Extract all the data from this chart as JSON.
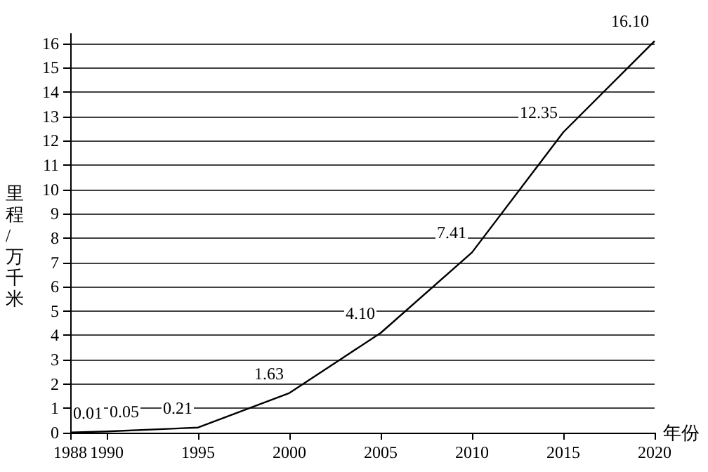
{
  "chart_data": {
    "type": "line",
    "xlabel": "年份",
    "ylabel": "里程/万千米",
    "x": [
      1988,
      1990,
      1995,
      2000,
      2005,
      2010,
      2015,
      2020
    ],
    "series": [
      {
        "color": "#000000",
        "values": [
          0.01,
          0.05,
          0.21,
          1.63,
          4.1,
          7.41,
          12.35,
          16.1
        ]
      }
    ],
    "value_labels": [
      "0.01",
      "0.05",
      "0.21",
      "1.63",
      "4.10",
      "7.41",
      "12.35",
      "16.10"
    ],
    "xlim": [
      1988,
      2020
    ],
    "xticks": [
      1988,
      1990,
      1995,
      2000,
      2005,
      2010,
      2015,
      2020
    ],
    "ylim": [
      0,
      16.4
    ],
    "yticks": [
      0,
      1,
      2,
      3,
      4,
      5,
      6,
      7,
      8,
      9,
      10,
      11,
      12,
      13,
      14,
      15,
      16
    ],
    "grid": "y",
    "marker": "none",
    "line_style": "solid"
  }
}
